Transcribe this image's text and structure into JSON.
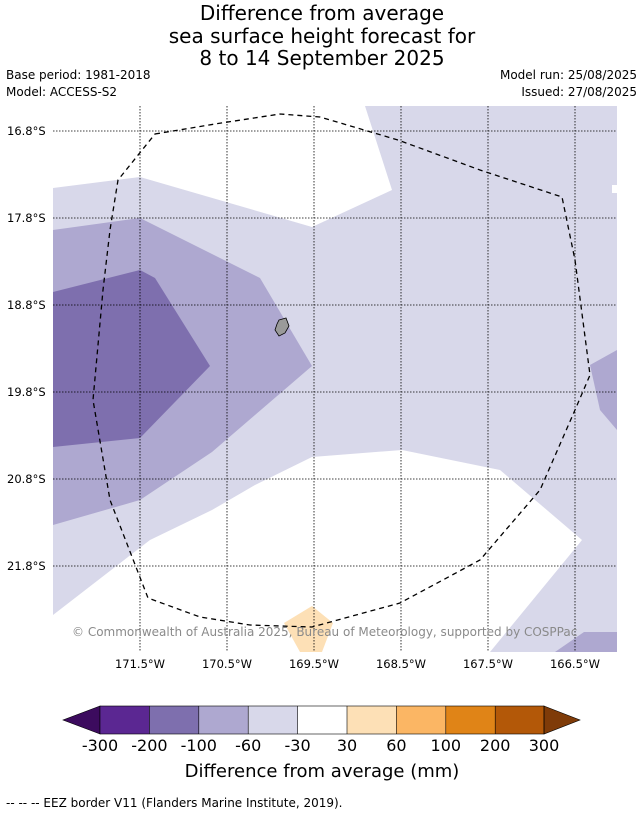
{
  "title": {
    "line1": "Difference from average",
    "line2": "sea surface height forecast for",
    "line3": "8 to 14 September 2025"
  },
  "meta": {
    "base_period": "Base period: 1981-2018",
    "model": "Model: ACCESS-S2",
    "model_run": "Model run: 25/08/2025",
    "issued": "Issued: 27/08/2025"
  },
  "map": {
    "lat_labels": [
      "16.8°S",
      "17.8°S",
      "18.8°S",
      "19.8°S",
      "20.8°S",
      "21.8°S"
    ],
    "lon_labels": [
      "171.5°W",
      "170.5°W",
      "169.5°W",
      "168.5°W",
      "167.5°W",
      "166.5°W"
    ],
    "copyright": "© Commonwealth of Australia 2025, Bureau of Meteorology, supported by COSPPac",
    "colors": {
      "land": "#9a9a9a",
      "eez_border": "#000000"
    }
  },
  "colorbar": {
    "title": "Difference from average (mm)",
    "ticks": [
      "-300",
      "-200",
      "-100",
      "-60",
      "-30",
      "30",
      "60",
      "100",
      "200",
      "300"
    ],
    "colors": [
      "#3c0b5e",
      "#5b2792",
      "#7e6fae",
      "#aea8d0",
      "#d8d8ea",
      "#ffffff",
      "#fde0b6",
      "#fbb664",
      "#e08417",
      "#b35808",
      "#7f3b08"
    ]
  },
  "footer": "--  --  -- EEZ border V11 (Flanders Marine Institute, 2019)."
}
